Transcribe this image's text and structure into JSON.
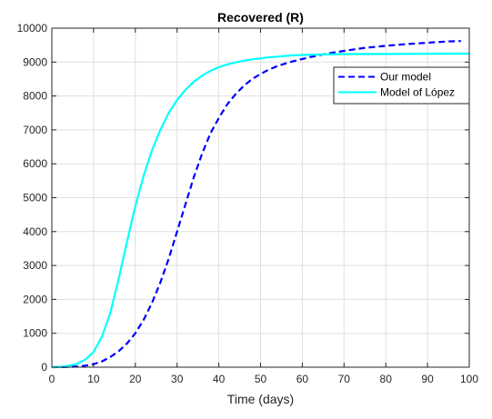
{
  "chart_data": {
    "type": "line",
    "title": "Recovered (R)",
    "xlabel": "Time (days)",
    "ylabel": "",
    "xlim": [
      0,
      100
    ],
    "ylim": [
      0,
      10000
    ],
    "xticks": [
      0,
      10,
      20,
      30,
      40,
      50,
      60,
      70,
      80,
      90,
      100
    ],
    "yticks": [
      0,
      1000,
      2000,
      3000,
      4000,
      5000,
      6000,
      7000,
      8000,
      9000,
      10000
    ],
    "grid": true,
    "legend_position": "top-right",
    "series": [
      {
        "name": "Our model",
        "color": "#0000ff",
        "style": "dashed",
        "x": [
          0,
          2,
          4,
          6,
          8,
          10,
          12,
          14,
          16,
          18,
          20,
          22,
          24,
          26,
          28,
          30,
          32,
          34,
          36,
          38,
          40,
          42,
          44,
          46,
          48,
          50,
          52,
          54,
          56,
          58,
          60,
          62,
          64,
          66,
          68,
          70,
          75,
          80,
          85,
          90,
          95,
          98
        ],
        "y": [
          0,
          2,
          8,
          20,
          45,
          90,
          170,
          300,
          470,
          700,
          1000,
          1400,
          1900,
          2500,
          3200,
          4000,
          4800,
          5600,
          6300,
          6900,
          7350,
          7750,
          8050,
          8300,
          8500,
          8650,
          8780,
          8880,
          8960,
          9030,
          9090,
          9150,
          9200,
          9250,
          9290,
          9330,
          9420,
          9480,
          9530,
          9570,
          9610,
          9620
        ]
      },
      {
        "name": "Model of López",
        "color": "#00ffff",
        "style": "solid",
        "x": [
          0,
          2,
          4,
          6,
          8,
          10,
          12,
          14,
          16,
          18,
          20,
          22,
          24,
          26,
          28,
          30,
          32,
          34,
          36,
          38,
          40,
          42,
          44,
          46,
          48,
          50,
          52,
          54,
          56,
          58,
          60,
          65,
          70,
          80,
          90,
          100
        ],
        "y": [
          0,
          10,
          40,
          100,
          220,
          450,
          900,
          1600,
          2600,
          3700,
          4750,
          5650,
          6400,
          7000,
          7500,
          7880,
          8180,
          8420,
          8600,
          8740,
          8850,
          8930,
          8990,
          9040,
          9080,
          9110,
          9140,
          9160,
          9180,
          9200,
          9210,
          9225,
          9235,
          9240,
          9245,
          9250
        ]
      }
    ]
  }
}
